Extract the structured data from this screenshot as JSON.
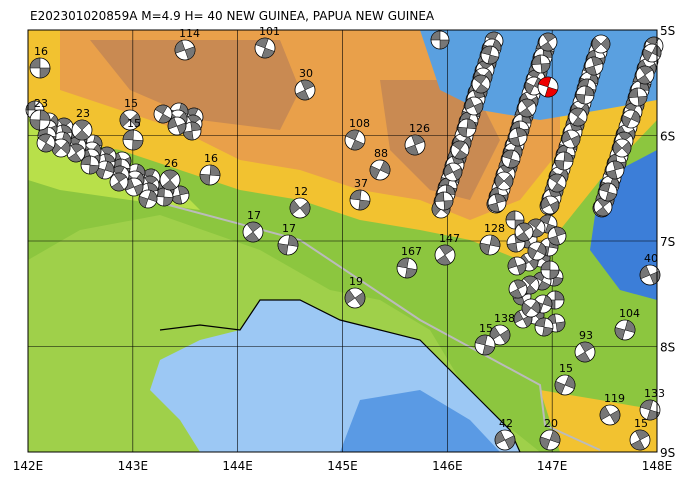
{
  "title": "E202301020859A  M=4.9  H= 40  NEW GUINEA, PAPUA NEW GUINEA",
  "lon_labels": [
    "142E",
    "143E",
    "144E",
    "145E",
    "146E",
    "147E",
    "148E"
  ],
  "lat_labels": [
    "5S",
    "6S",
    "7S",
    "8S",
    "9S"
  ],
  "events": [
    {
      "label": "16"
    },
    {
      "label": "23"
    },
    {
      "label": "23"
    },
    {
      "label": "15"
    },
    {
      "label": "15"
    },
    {
      "label": "26"
    },
    {
      "label": "16"
    },
    {
      "label": "12"
    },
    {
      "label": "37"
    },
    {
      "label": "17"
    },
    {
      "label": "17"
    },
    {
      "label": "19"
    },
    {
      "label": "167"
    },
    {
      "label": "147"
    },
    {
      "label": "128"
    },
    {
      "label": "138"
    },
    {
      "label": "15"
    },
    {
      "label": "93"
    },
    {
      "label": "104"
    },
    {
      "label": "119"
    },
    {
      "label": "133"
    },
    {
      "label": "15"
    },
    {
      "label": "20"
    },
    {
      "label": "42"
    },
    {
      "label": "101"
    },
    {
      "label": "30"
    },
    {
      "label": "15"
    },
    {
      "label": "40"
    },
    {
      "label": "108"
    },
    {
      "label": "126"
    },
    {
      "label": "88"
    },
    {
      "label": "114"
    }
  ]
}
